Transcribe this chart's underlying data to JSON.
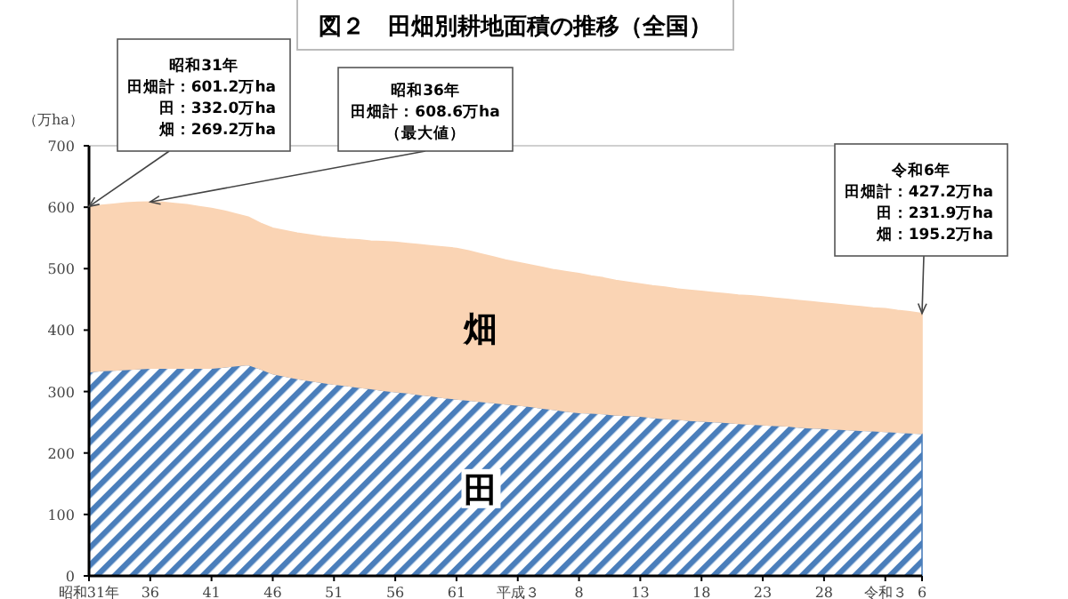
{
  "chart_data": {
    "type": "area",
    "stacked": true,
    "title": "図２　田畑別耕地面積の推移（全国）",
    "ylabel": "（万ha）",
    "categories": [
      "昭和31年",
      null,
      null,
      null,
      null,
      "36",
      null,
      null,
      null,
      null,
      "41",
      null,
      null,
      null,
      null,
      "46",
      null,
      null,
      null,
      null,
      "51",
      null,
      null,
      null,
      null,
      "56",
      null,
      null,
      null,
      null,
      "61",
      null,
      null,
      null,
      null,
      "平成３",
      null,
      null,
      null,
      null,
      "8",
      null,
      null,
      null,
      null,
      "13",
      null,
      null,
      null,
      null,
      "18",
      null,
      null,
      null,
      null,
      "23",
      null,
      null,
      null,
      null,
      "28",
      null,
      null,
      null,
      null,
      "令和３",
      null,
      null,
      "6"
    ],
    "series": [
      {
        "name": "田",
        "color": "#4a7ebb",
        "values": [
          332.0,
          334,
          335,
          336,
          337,
          338,
          338,
          338,
          338,
          338,
          338,
          340,
          342,
          344,
          337,
          329,
          325,
          321,
          318,
          315,
          312,
          310,
          307,
          305,
          302,
          300,
          298,
          295,
          293,
          290,
          288,
          286,
          284,
          282,
          280,
          278,
          276,
          273,
          271,
          268,
          266,
          265,
          264,
          262,
          261,
          260,
          258,
          256,
          255,
          253,
          252,
          251,
          250,
          248,
          247,
          246,
          245,
          244,
          242,
          241,
          240,
          239,
          238,
          237,
          236,
          235,
          234,
          233,
          231.9
        ]
      },
      {
        "name": "畑",
        "color": "#fad4b4",
        "values": [
          269.2,
          269,
          270,
          271,
          271,
          270.6,
          270,
          268,
          266,
          263,
          260,
          254,
          247,
          240,
          237,
          237,
          237,
          237,
          237,
          237,
          238,
          238,
          240,
          240,
          242,
          243,
          243,
          244,
          244,
          245,
          245,
          243,
          240,
          237,
          234,
          232,
          230,
          229,
          227,
          227,
          226,
          223,
          221,
          219,
          217,
          215,
          214,
          214,
          212,
          212,
          211,
          210,
          209,
          209,
          209,
          208,
          207,
          206,
          206,
          205,
          204,
          203,
          202,
          201,
          200,
          200,
          198,
          197,
          195.2
        ]
      }
    ],
    "ylim": [
      0,
      700
    ],
    "yticks": [
      0,
      100,
      200,
      300,
      400,
      500,
      600,
      700
    ],
    "annotations": [
      "昭和31年",
      "田畑計：601.2万ha",
      "田：332.0万ha",
      {
        "text": "畑：269.2万ha",
        "x": "昭和31年",
        "y": 601.2
      },
      "昭和36年",
      "田畑計：608.6万ha",
      {
        "text": "（最大値）",
        "x": "36",
        "y": 608.6
      },
      "令和6年",
      "田畑計：427.2万ha",
      "田：231.9万ha",
      {
        "text": "畑：195.2万ha",
        "x": "6",
        "y": 427.2
      }
    ]
  }
}
